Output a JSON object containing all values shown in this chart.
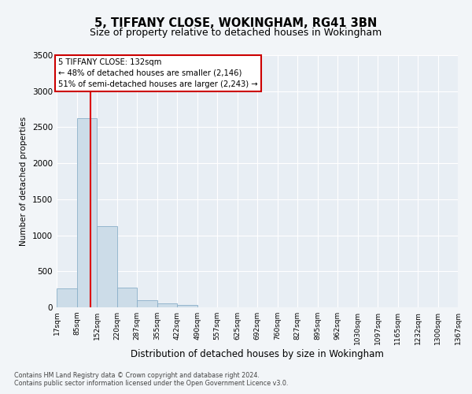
{
  "title": "5, TIFFANY CLOSE, WOKINGHAM, RG41 3BN",
  "subtitle": "Size of property relative to detached houses in Wokingham",
  "xlabel": "Distribution of detached houses by size in Wokingham",
  "ylabel": "Number of detached properties",
  "footnote1": "Contains HM Land Registry data © Crown copyright and database right 2024.",
  "footnote2": "Contains public sector information licensed under the Open Government Licence v3.0.",
  "bar_edges": [
    17,
    85,
    152,
    220,
    287,
    355,
    422,
    490,
    557,
    625,
    692,
    760,
    827,
    895,
    962,
    1030,
    1097,
    1165,
    1232,
    1300,
    1367
  ],
  "bar_heights": [
    265,
    2630,
    1130,
    270,
    100,
    55,
    30,
    5,
    2,
    1,
    1,
    0,
    0,
    0,
    0,
    0,
    0,
    0,
    0,
    0
  ],
  "bar_color": "#ccdce8",
  "bar_edge_color": "#8aafc8",
  "red_line_x": 132,
  "ylim": [
    0,
    3500
  ],
  "yticks": [
    0,
    500,
    1000,
    1500,
    2000,
    2500,
    3000,
    3500
  ],
  "annotation_text": "5 TIFFANY CLOSE: 132sqm\n← 48% of detached houses are smaller (2,146)\n51% of semi-detached houses are larger (2,243) →",
  "annotation_box_color": "#ffffff",
  "annotation_box_edge": "#cc0000",
  "background_color": "#f2f5f8",
  "plot_bg_color": "#e8eef4",
  "grid_color": "#ffffff",
  "title_fontsize": 10.5,
  "subtitle_fontsize": 9,
  "tick_fontsize": 6.5,
  "ylabel_fontsize": 7.5,
  "xlabel_fontsize": 8.5,
  "footnote_fontsize": 5.8
}
